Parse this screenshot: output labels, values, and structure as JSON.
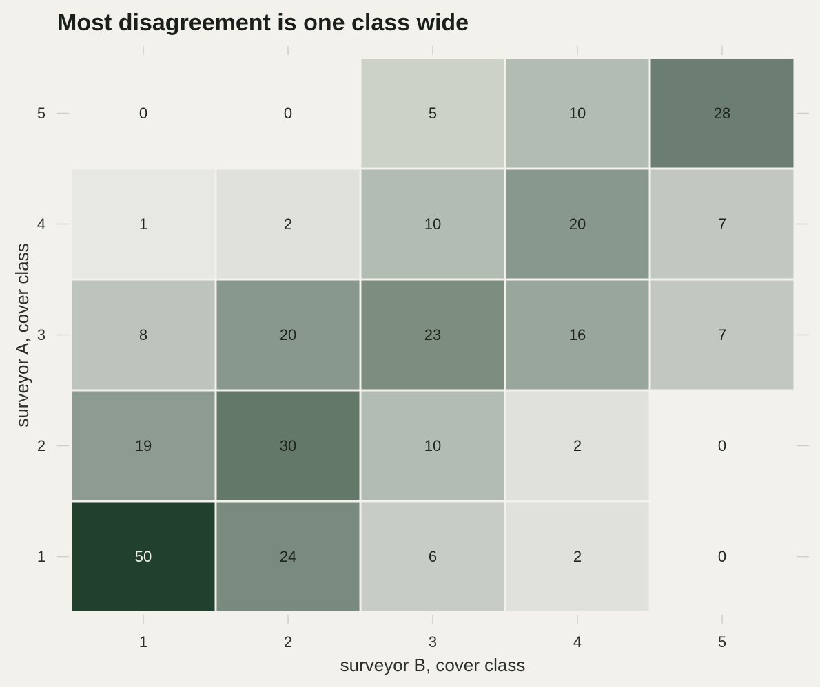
{
  "chart_data": {
    "type": "heatmap",
    "title": "Most disagreement is one class wide",
    "xlabel": "surveyor B, cover class",
    "ylabel": "surveyor A, cover class",
    "x_categories": [
      "1",
      "2",
      "3",
      "4",
      "5"
    ],
    "y_categories": [
      "1",
      "2",
      "3",
      "4",
      "5"
    ],
    "values": [
      [
        50,
        24,
        6,
        2,
        0
      ],
      [
        19,
        30,
        10,
        2,
        0
      ],
      [
        8,
        20,
        23,
        16,
        7
      ],
      [
        1,
        2,
        10,
        20,
        7
      ],
      [
        0,
        0,
        5,
        10,
        28
      ]
    ],
    "color_scale": {
      "low": "#f2f1eb",
      "high": "#21402e"
    },
    "grid": false,
    "legend": "none"
  }
}
